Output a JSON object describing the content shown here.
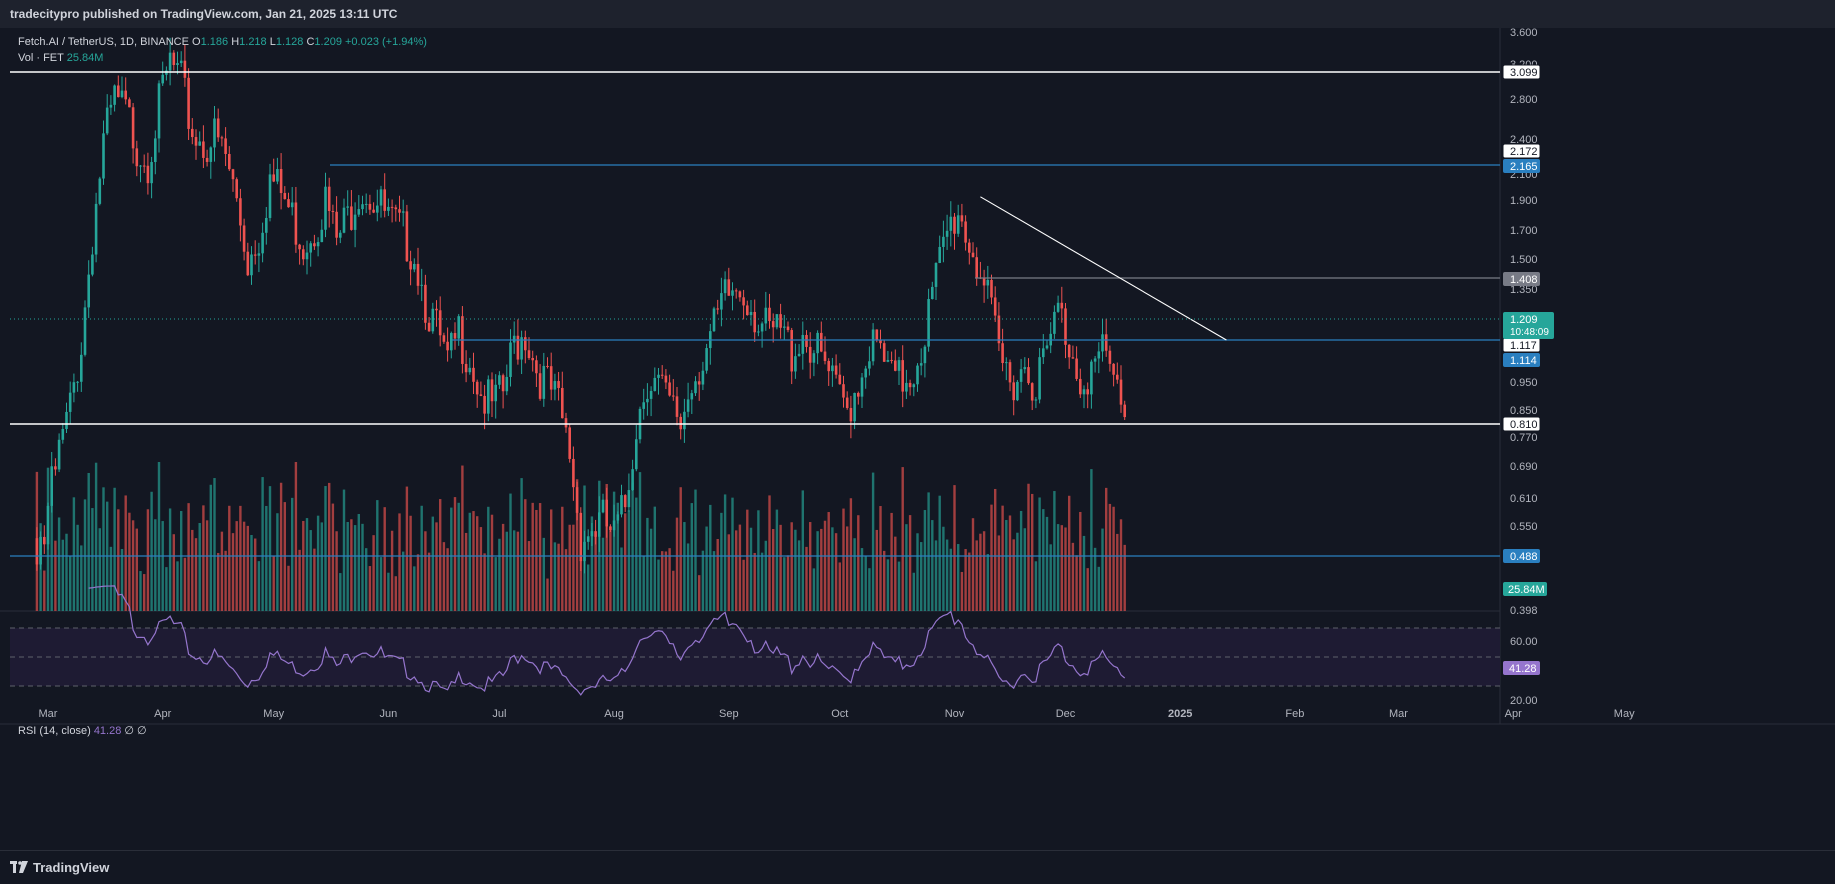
{
  "header": {
    "publisher": "tradecitypro published on TradingView.com, Jan 21, 2025 13:11 UTC"
  },
  "legend": {
    "symbol": "Fetch.AI / TetherUS, 1D, BINANCE",
    "o_label": "O",
    "o": "1.186",
    "h_label": "H",
    "h": "1.218",
    "l_label": "L",
    "l": "1.128",
    "c_label": "C",
    "c": "1.209",
    "change": "+0.023 (+1.94%)",
    "vol_label": "Vol · FET",
    "vol": "25.84M"
  },
  "rsi_legend": {
    "label": "RSI (14, close)",
    "value": "41.28",
    "extra": "∅ ∅"
  },
  "footer": {
    "brand": "TradingView"
  },
  "colors": {
    "up": "#26a69a",
    "down": "#ef5350",
    "rsi": "#9575cd",
    "blue_line": "#2a7fc0",
    "bg": "#131722"
  },
  "chart_data": {
    "type": "candlestick",
    "symbol": "FETUSDT",
    "timeframe": "1D",
    "x_labels": [
      "Mar",
      "Apr",
      "May",
      "Jun",
      "Jul",
      "Aug",
      "Sep",
      "Oct",
      "Nov",
      "Dec",
      "2025",
      "Feb",
      "Mar",
      "Apr",
      "May"
    ],
    "x_label_days": [
      0,
      31,
      61,
      92,
      122,
      153,
      184,
      214,
      245,
      275,
      306,
      337,
      365,
      396,
      426
    ],
    "price_ticks": [
      "3.600",
      "3.200",
      "2.800",
      "2.400",
      "2.100",
      "1.900",
      "1.700",
      "1.500",
      "1.350",
      "0.950",
      "0.850",
      "0.770",
      "0.690",
      "0.610",
      "0.550",
      "0.488",
      "0.440",
      "0.398"
    ],
    "y_scale": "log",
    "closes": [
      [
        -3,
        0.79
      ],
      [
        0,
        0.9
      ],
      [
        3,
        1.05
      ],
      [
        6,
        1.2
      ],
      [
        9,
        1.45
      ],
      [
        12,
        2.0
      ],
      [
        15,
        2.6
      ],
      [
        18,
        2.95
      ],
      [
        21,
        2.85
      ],
      [
        24,
        2.6
      ],
      [
        27,
        2.5
      ],
      [
        30,
        2.9
      ],
      [
        33,
        3.3
      ],
      [
        36,
        3.1
      ],
      [
        39,
        2.7
      ],
      [
        42,
        2.6
      ],
      [
        45,
        2.65
      ],
      [
        48,
        2.5
      ],
      [
        51,
        2.2
      ],
      [
        54,
        1.85
      ],
      [
        57,
        2.0
      ],
      [
        60,
        2.35
      ],
      [
        63,
        2.25
      ],
      [
        66,
        2.1
      ],
      [
        69,
        1.95
      ],
      [
        72,
        2.05
      ],
      [
        75,
        2.2
      ],
      [
        78,
        1.95
      ],
      [
        81,
        2.1
      ],
      [
        84,
        2.3
      ],
      [
        87,
        2.25
      ],
      [
        90,
        2.15
      ],
      [
        93,
        2.05
      ],
      [
        96,
        2.0
      ],
      [
        99,
        1.9
      ],
      [
        102,
        1.65
      ],
      [
        105,
        1.5
      ],
      [
        108,
        1.35
      ],
      [
        111,
        1.5
      ],
      [
        114,
        1.4
      ],
      [
        117,
        1.25
      ],
      [
        120,
        1.2
      ],
      [
        123,
        1.25
      ],
      [
        126,
        1.45
      ],
      [
        129,
        1.5
      ],
      [
        132,
        1.35
      ],
      [
        135,
        1.28
      ],
      [
        138,
        1.2
      ],
      [
        141,
        1.05
      ],
      [
        144,
        0.82
      ],
      [
        147,
        0.84
      ],
      [
        150,
        0.86
      ],
      [
        153,
        0.82
      ],
      [
        156,
        0.9
      ],
      [
        159,
        1.15
      ],
      [
        162,
        1.32
      ],
      [
        165,
        1.28
      ],
      [
        168,
        1.2
      ],
      [
        171,
        1.15
      ],
      [
        174,
        1.3
      ],
      [
        177,
        1.4
      ],
      [
        180,
        1.5
      ],
      [
        183,
        1.65
      ],
      [
        186,
        1.7
      ],
      [
        189,
        1.68
      ],
      [
        192,
        1.55
      ],
      [
        195,
        1.48
      ],
      [
        198,
        1.5
      ],
      [
        201,
        1.42
      ],
      [
        204,
        1.5
      ],
      [
        207,
        1.42
      ],
      [
        210,
        1.35
      ],
      [
        213,
        1.25
      ],
      [
        216,
        1.2
      ],
      [
        219,
        1.3
      ],
      [
        222,
        1.45
      ],
      [
        225,
        1.4
      ],
      [
        228,
        1.3
      ],
      [
        231,
        1.3
      ],
      [
        234,
        1.35
      ],
      [
        237,
        1.5
      ],
      [
        240,
        1.75
      ],
      [
        243,
        2.0
      ],
      [
        246,
        2.15
      ],
      [
        249,
        1.95
      ],
      [
        252,
        1.8
      ],
      [
        255,
        1.55
      ],
      [
        258,
        1.35
      ],
      [
        261,
        1.32
      ],
      [
        264,
        1.36
      ],
      [
        267,
        1.3
      ],
      [
        270,
        1.4
      ],
      [
        273,
        1.6
      ],
      [
        276,
        1.45
      ],
      [
        279,
        1.32
      ],
      [
        282,
        1.34
      ],
      [
        285,
        1.4
      ],
      [
        288,
        1.3
      ],
      [
        291,
        1.21
      ]
    ],
    "horizontal_levels": [
      {
        "price": 3.099,
        "label": "3.099",
        "color": "#ffffff"
      },
      {
        "price": 2.165,
        "label": "2.165",
        "color": "#2a7fc0"
      },
      {
        "price": 2.172,
        "label": "2.172",
        "color": "#ffffff"
      },
      {
        "price": 1.408,
        "label": "1.408",
        "color": "#787b86"
      },
      {
        "price": 1.117,
        "label": "1.117",
        "color": "#ffffff"
      },
      {
        "price": 1.114,
        "label": "1.114",
        "color": "#2a7fc0"
      },
      {
        "price": 0.81,
        "label": "0.810",
        "color": "#ffffff"
      },
      {
        "price": 0.488,
        "label": "0.488",
        "color": "#2a7fc0"
      }
    ],
    "current": {
      "price": 1.209,
      "label": "1.209",
      "countdown": "10:48:09"
    },
    "trendline": {
      "from": [
        252,
        2.1
      ],
      "to": [
        312,
        1.117
      ]
    },
    "volume": {
      "current_label": "25.84M"
    },
    "rsi": {
      "period": 14,
      "value": 41.28,
      "ticks": [
        "60.00",
        "20.00"
      ],
      "bands": [
        70,
        50,
        30
      ]
    }
  }
}
